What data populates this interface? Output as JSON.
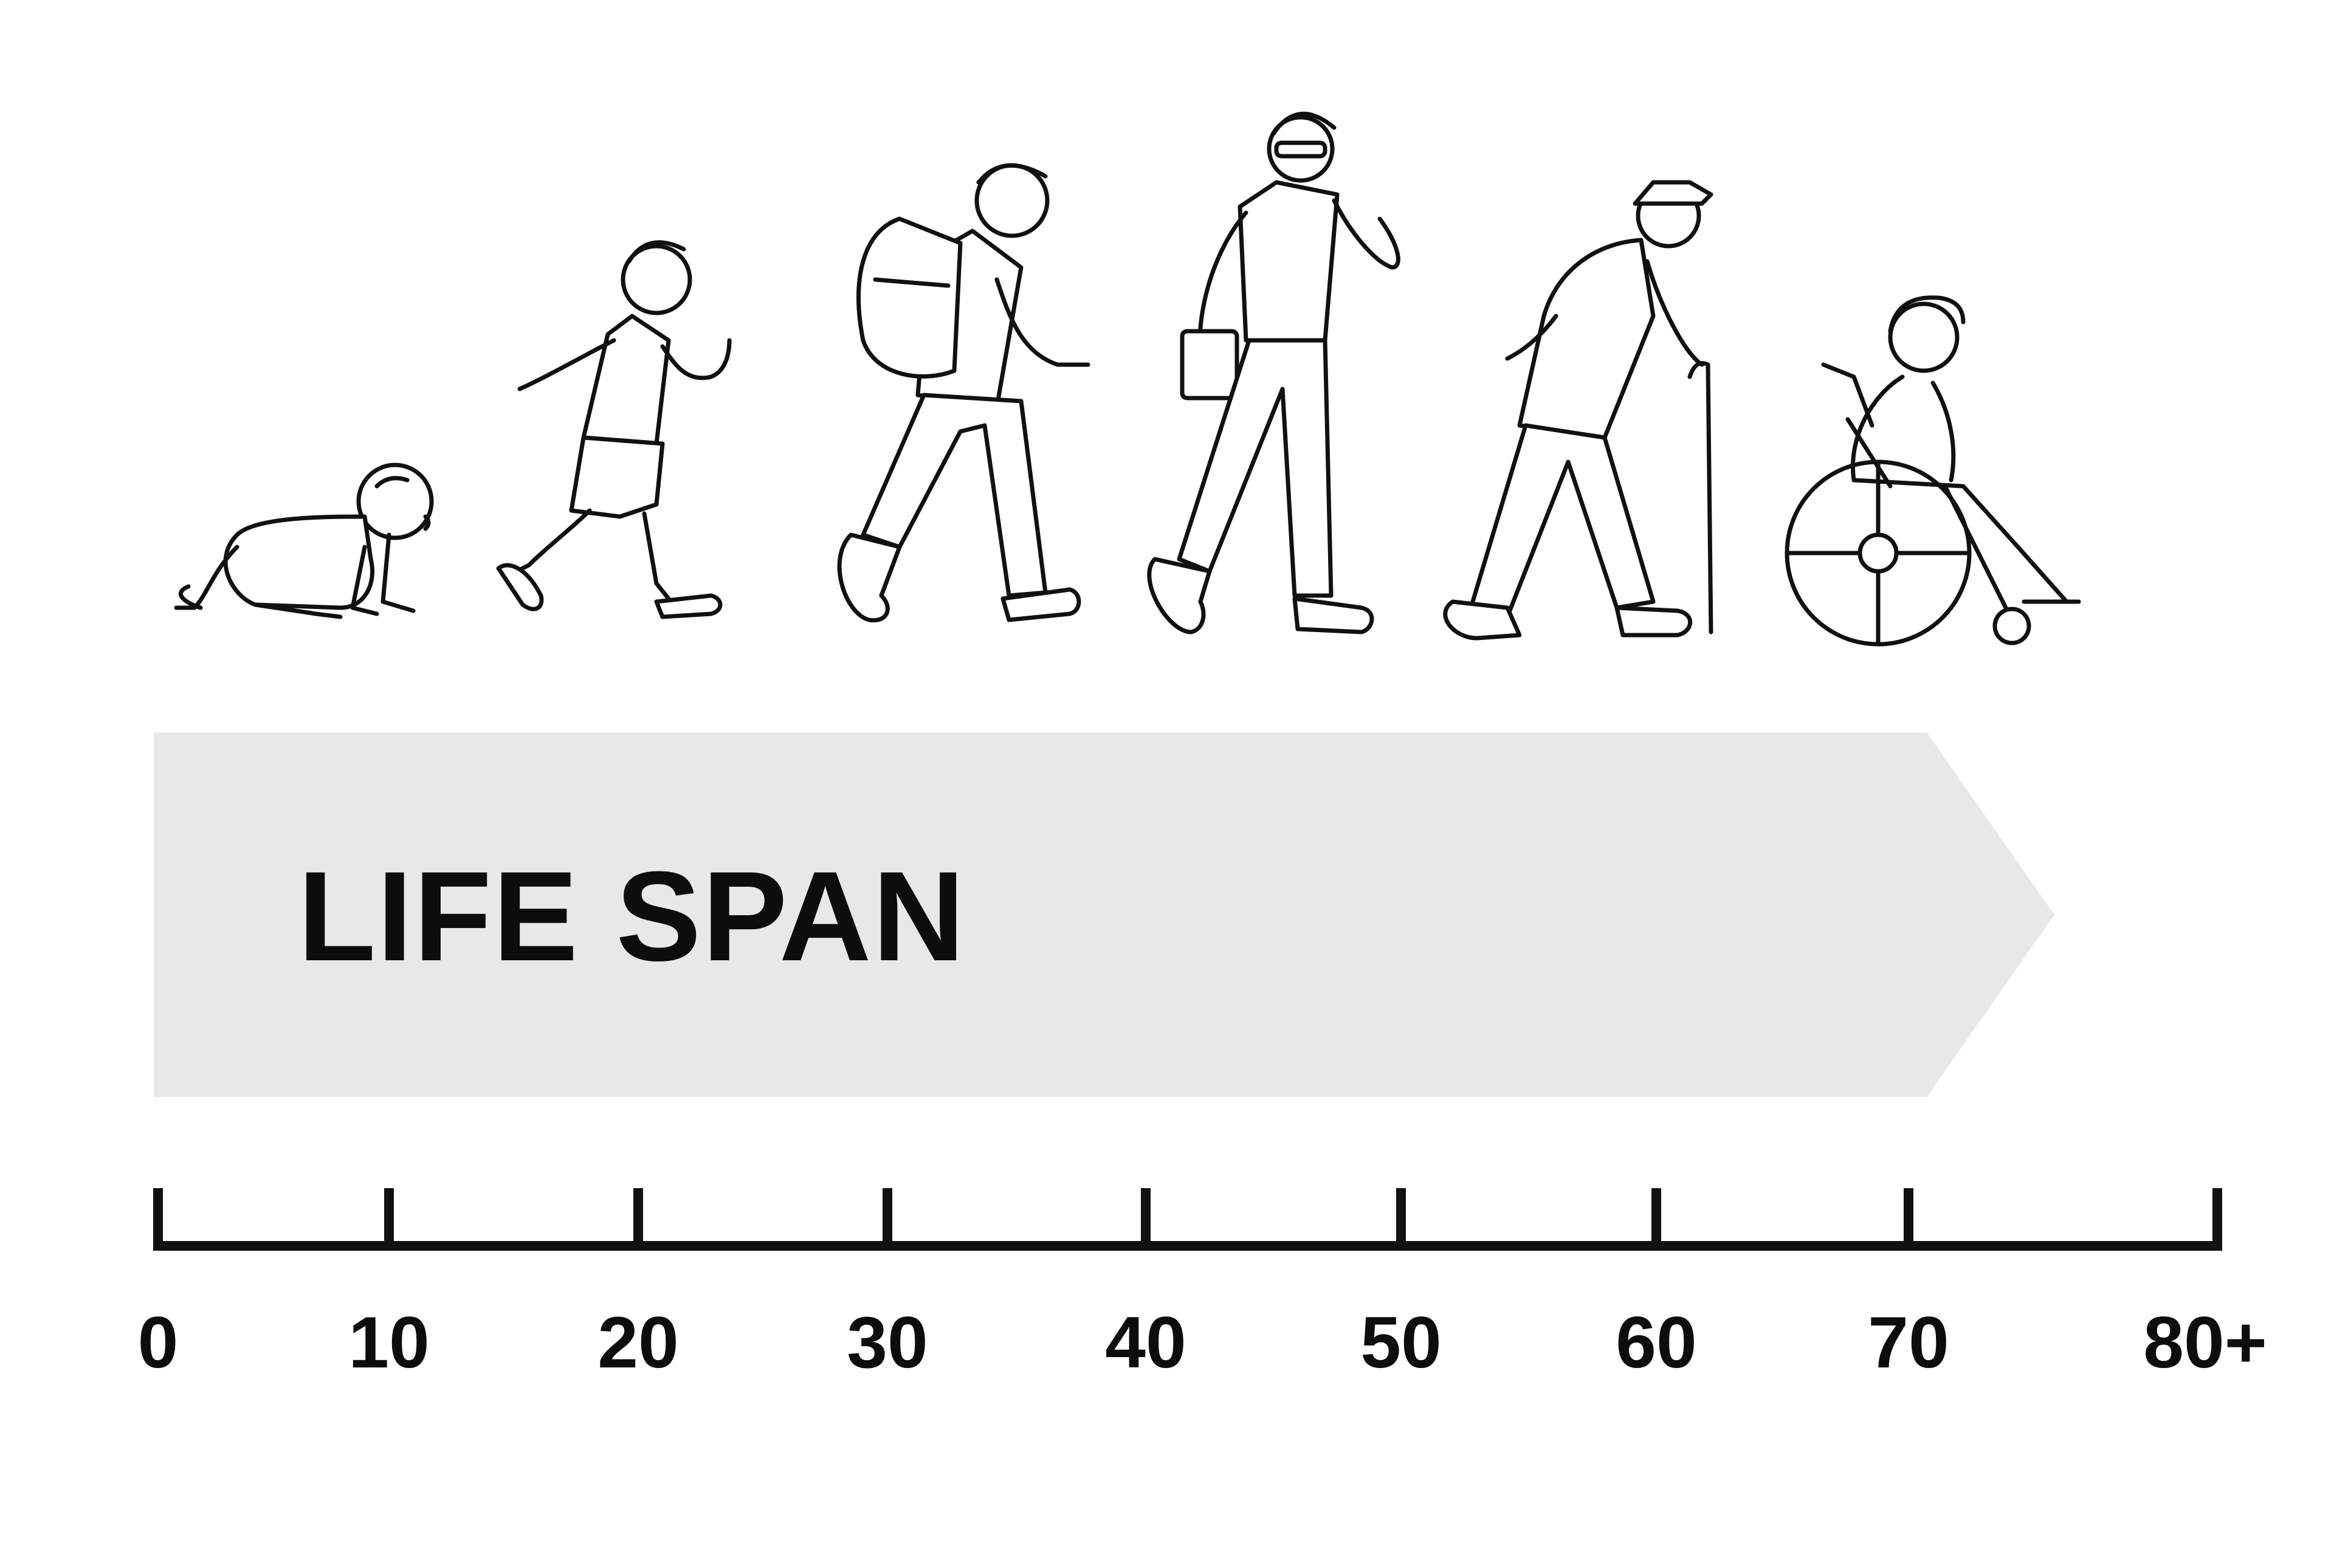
{
  "title": "LIFE SPAN",
  "arrow_color": "#e8e8e8",
  "axis_color": "#111111",
  "stages": [
    {
      "icon": "crawling-baby-icon"
    },
    {
      "icon": "running-child-icon"
    },
    {
      "icon": "student-with-backpack-icon"
    },
    {
      "icon": "adult-with-folder-icon"
    },
    {
      "icon": "elderly-with-cane-icon"
    },
    {
      "icon": "person-in-wheelchair-icon"
    }
  ],
  "axis": {
    "ticks": [
      "0",
      "10",
      "20",
      "30",
      "40",
      "50",
      "60",
      "70",
      "80+"
    ]
  }
}
